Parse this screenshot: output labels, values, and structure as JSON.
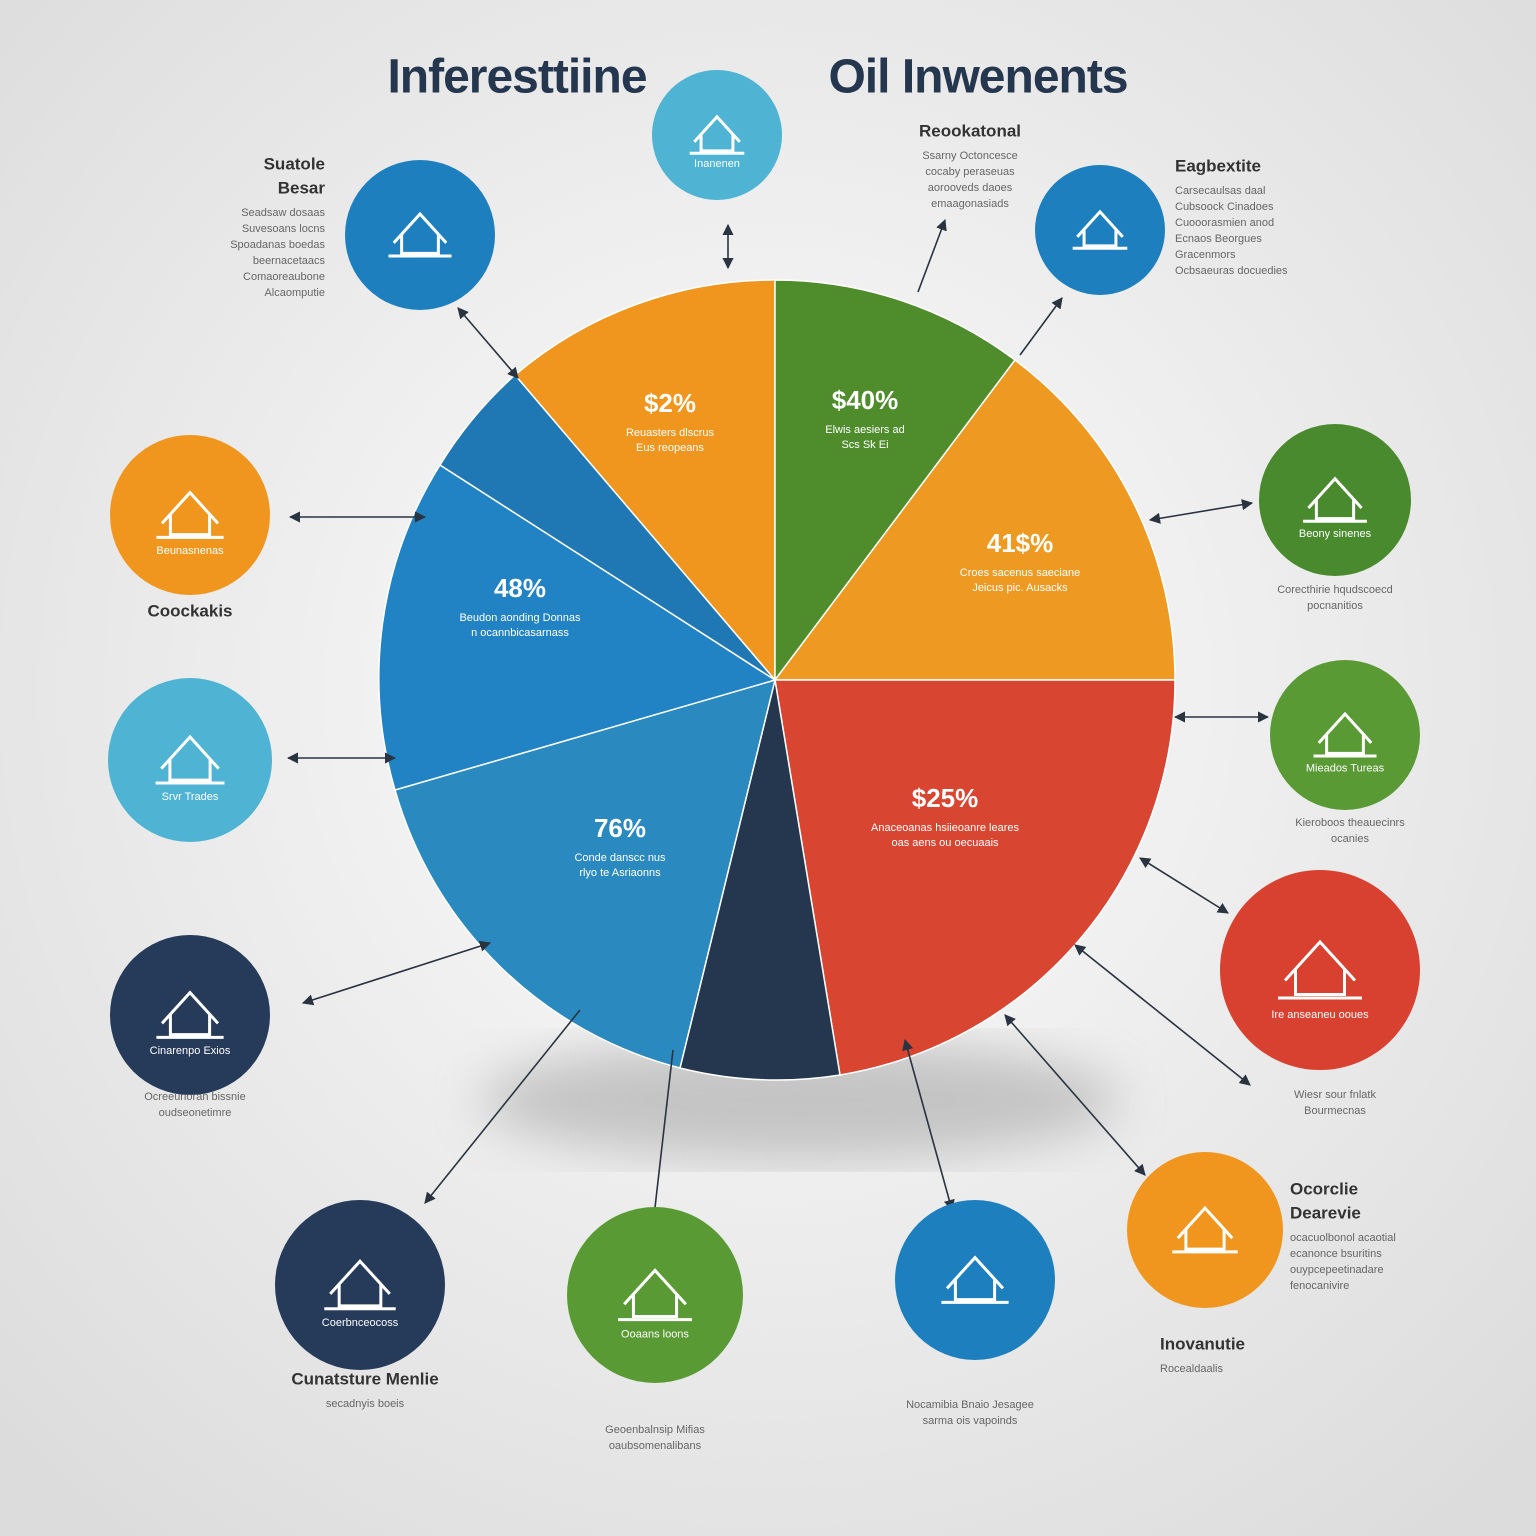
{
  "header": {
    "title_left": "Inferesttiine",
    "title_right": "Oil Inwenents"
  },
  "slices": [
    {
      "label": "$2%",
      "caption": [
        "Reuasters dlscrus",
        "Eus reopeans"
      ]
    },
    {
      "label": "$40%",
      "caption": [
        "Elwis aesiers ad",
        "Scs Sk Ei"
      ]
    },
    {
      "label": "41$%",
      "caption": [
        "Croes sacenus saeciane",
        "Jeicus pic. Ausacks"
      ]
    },
    {
      "label": "48%",
      "caption": [
        "Beudon aonding Donnas",
        "n ocannbicasarnass"
      ]
    },
    {
      "label": "76%",
      "caption": [
        "Conde danscc nus",
        "rlyo te Asriaonns"
      ]
    },
    {
      "label": "$25%",
      "caption": [
        "Anaceoanas hsiieoanre leares",
        "oas aens ou oecuaais"
      ]
    }
  ],
  "callouts": [
    {
      "title": [
        "Suatole",
        "Besar"
      ],
      "lines": [
        "Seadsaw dosaas",
        "Suvesoans locns",
        "Spoadanas boedas",
        "beernacetaacs",
        "Comaoreaubone",
        "Alcaomputie"
      ]
    },
    {
      "title": [
        "Reookatonal"
      ],
      "lines": [
        "Ssarny Octoncesce",
        "cocaby peraseuas",
        "aorooveds daoes",
        "emaagonasiads"
      ]
    },
    {
      "title": [
        "Eagbextite"
      ],
      "lines": [
        "Carsecaulsas daal",
        "Cubsoock Cinadoes",
        "Cuooorasmien anod",
        "Ecnaos Beorgues",
        "Gracenmors",
        "Ocbsaeuras docuedies"
      ]
    },
    {
      "title": [
        "Coockakis"
      ],
      "lines": []
    },
    {
      "title": [
        "Ocorclie",
        "Dearevie"
      ],
      "lines": [
        "ocacuolbonol acaotial",
        "ecanonce bsuritins",
        "ouypcepeetinadare",
        "fenocanivire"
      ]
    },
    {
      "title": [
        "Inovanutie"
      ],
      "lines": [
        "Rocealdaalis"
      ]
    },
    {
      "title": [
        "Cunatsture Menlie"
      ],
      "lines": [
        "secadnyis boeis"
      ]
    },
    {
      "title": [],
      "lines": [
        "Corecthirie hqudscoecd",
        "pocnanitios"
      ]
    },
    {
      "title": [],
      "lines": [
        "Kieroboos theauecinrs",
        "ocanies"
      ]
    },
    {
      "title": [],
      "lines": [
        "Wiesr sour fnlatk",
        "Bourmecnas"
      ]
    },
    {
      "title": [],
      "lines": [
        "Ocreeunoran bissnie",
        "oudseonetimre"
      ]
    },
    {
      "title": [],
      "lines": [
        "Nocamibia Bnaio Jesagee",
        "sarma ois vapoinds"
      ]
    },
    {
      "title": [],
      "lines": [
        "Geoenbalnsip Mifias",
        "oaubsomenalibans"
      ]
    }
  ],
  "circles": [
    {
      "label": "Inanenen"
    },
    {
      "label": ""
    },
    {
      "label": ""
    },
    {
      "label": "Beunasnenas"
    },
    {
      "label": "Beony sinenes"
    },
    {
      "label": "Srvr Trades"
    },
    {
      "label": "Mieados Tureas"
    },
    {
      "label": "Cinarenpo Exios"
    },
    {
      "label": "Ire anseaneu ooues"
    },
    {
      "label": "Coerbnceocoss"
    },
    {
      "label": "Ooaans loons"
    },
    {
      "label": ""
    },
    {
      "label": ""
    }
  ]
}
